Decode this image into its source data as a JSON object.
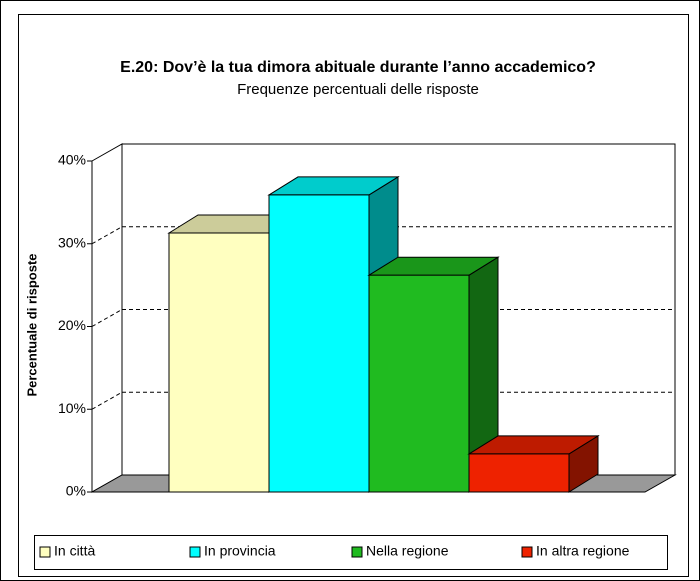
{
  "chart_data": {
    "type": "bar3d",
    "title": "E.20: Dov’è la tua dimora abituale durante l’anno accademico?",
    "subtitle": "Frequenze percentuali delle risposte",
    "y_label": "Percentuale di risposte",
    "categories": [
      "In città",
      "In provincia",
      "Nella regione",
      "In altra regione"
    ],
    "values": [
      31.3,
      35.9,
      26.2,
      4.6
    ],
    "colors": [
      "#ffffc0",
      "#00ffff",
      "#20bb20",
      "#ee2200"
    ],
    "ylim": [
      0,
      40
    ],
    "yticks": [
      {
        "value": 0,
        "label": "0%"
      },
      {
        "value": 10,
        "label": "10%"
      },
      {
        "value": 20,
        "label": "20%"
      },
      {
        "value": 30,
        "label": "30%"
      },
      {
        "value": 40,
        "label": "40%"
      }
    ],
    "grid": true,
    "legend": "bottom"
  }
}
